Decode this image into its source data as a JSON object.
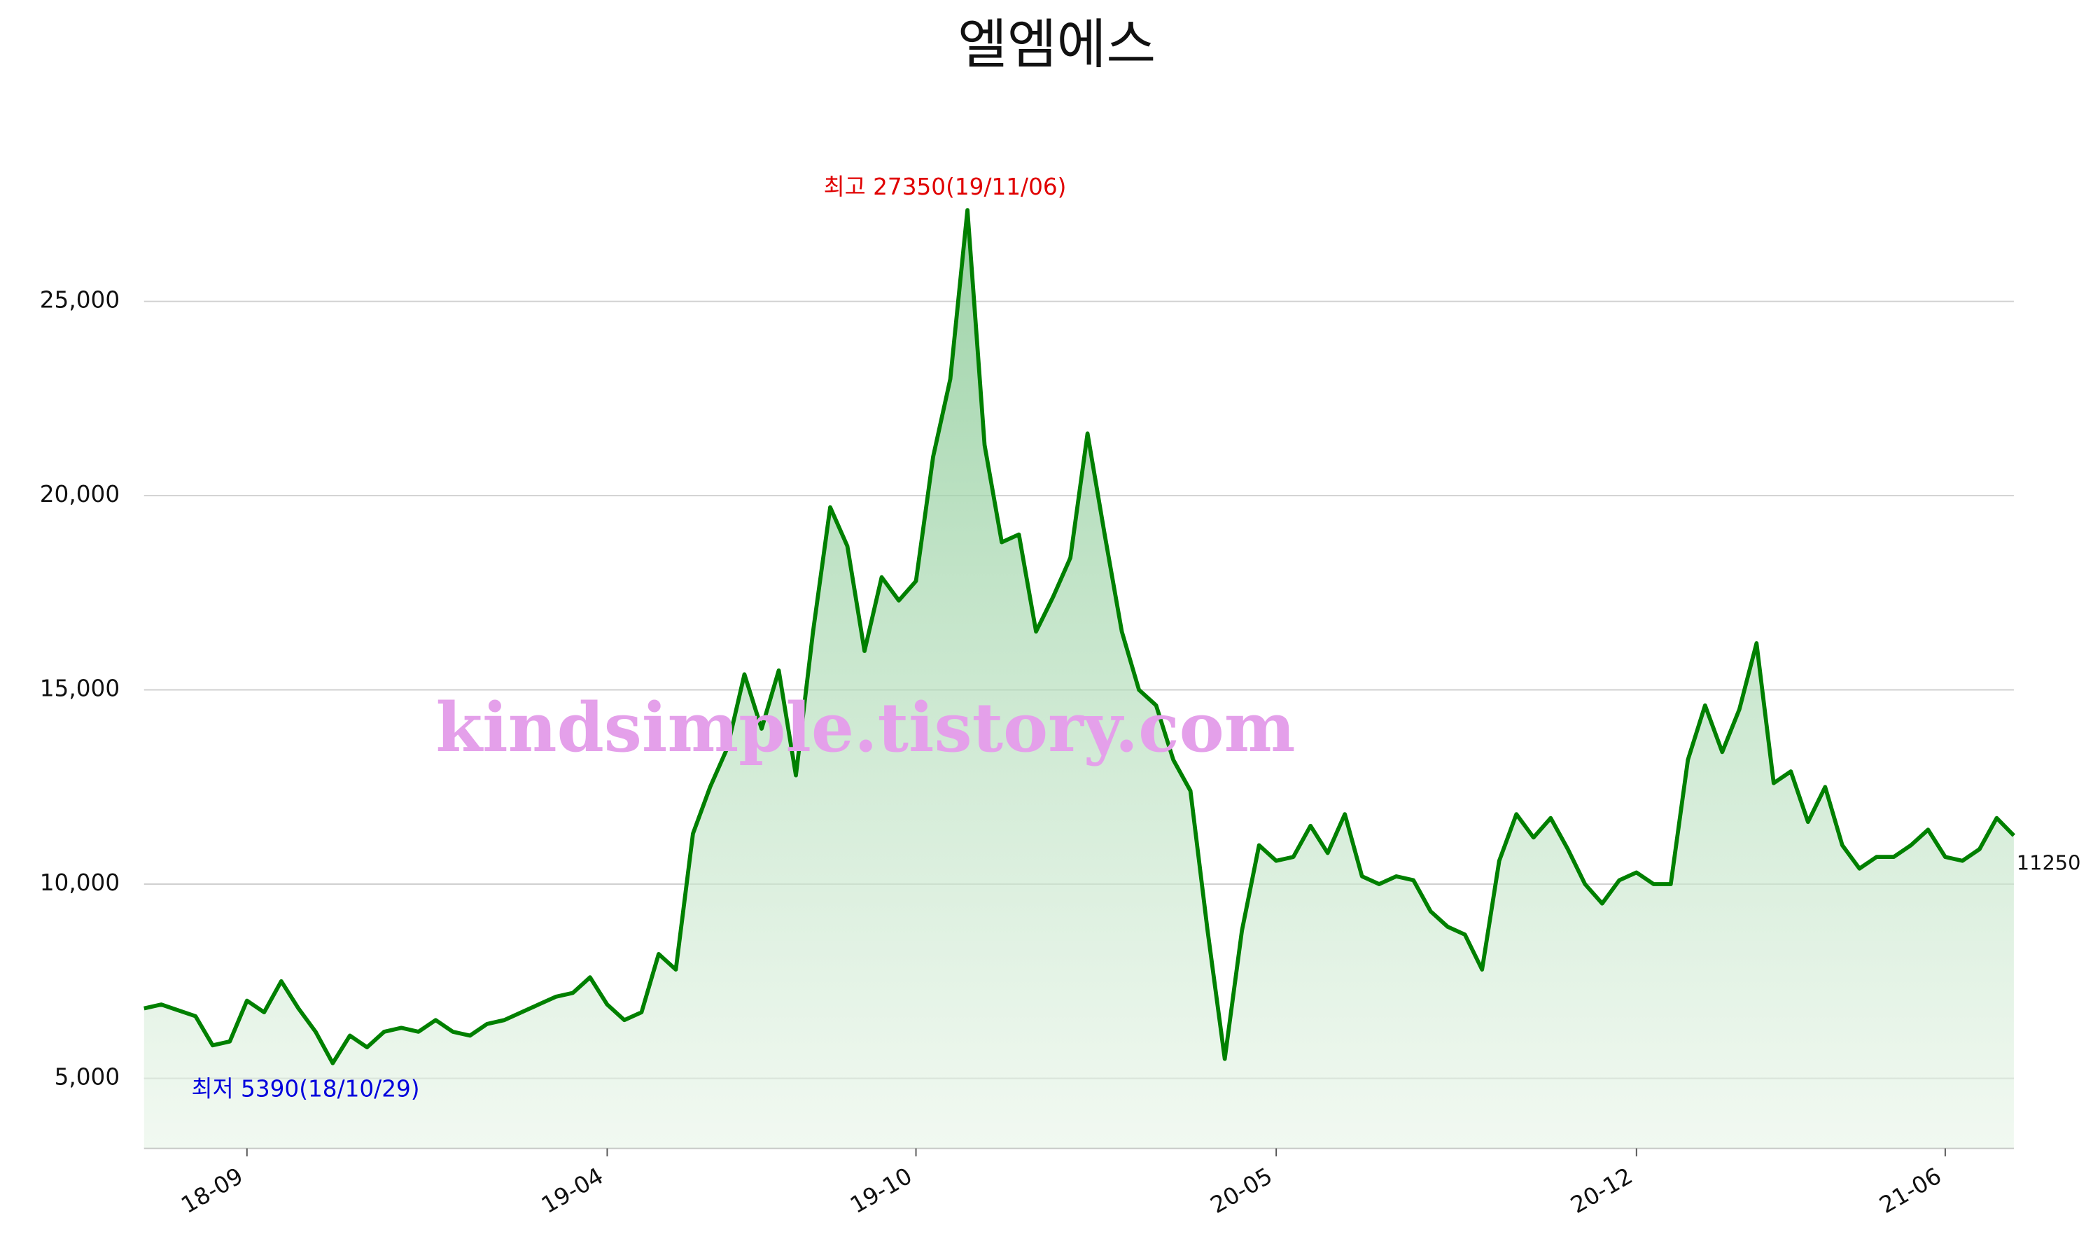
{
  "chart_data": {
    "type": "line",
    "title": "엘엠에스",
    "x": [
      "18-07",
      "18-07",
      "18-07",
      "18-08",
      "18-08",
      "18-08",
      "18-09",
      "18-09",
      "18-09",
      "18-10",
      "18-10",
      "18-10",
      "18-11",
      "18-11",
      "18-11",
      "18-12",
      "18-12",
      "18-12",
      "19-01",
      "19-01",
      "19-01",
      "19-02",
      "19-02",
      "19-02",
      "19-03",
      "19-03",
      "19-03",
      "19-04",
      "19-04",
      "19-04",
      "19-05",
      "19-05",
      "19-05",
      "19-06",
      "19-06",
      "19-06",
      "19-07",
      "19-07",
      "19-07",
      "19-08",
      "19-08",
      "19-08",
      "19-09",
      "19-09",
      "19-09",
      "19-10",
      "19-10",
      "19-10",
      "19-11",
      "19-11",
      "19-11",
      "19-12",
      "19-12",
      "19-12",
      "20-01",
      "20-01",
      "20-01",
      "20-02",
      "20-02",
      "20-02",
      "20-03",
      "20-03",
      "20-03",
      "20-04",
      "20-04",
      "20-04",
      "20-05",
      "20-05",
      "20-05",
      "20-06",
      "20-06",
      "20-06",
      "20-07",
      "20-07",
      "20-07",
      "20-08",
      "20-08",
      "20-08",
      "20-09",
      "20-09",
      "20-09",
      "20-10",
      "20-10",
      "20-10",
      "20-11",
      "20-11",
      "20-11",
      "20-12",
      "20-12",
      "20-12",
      "21-01",
      "21-01",
      "21-01",
      "21-02",
      "21-02",
      "21-02",
      "21-03",
      "21-03",
      "21-03",
      "21-04",
      "21-04",
      "21-04",
      "21-05",
      "21-05",
      "21-05",
      "21-06",
      "21-06",
      "21-06",
      "21-07",
      "21-07"
    ],
    "series": [
      {
        "name": "엘엠에스",
        "color": "#008000",
        "values": [
          6800,
          6900,
          6750,
          6600,
          5850,
          5950,
          7000,
          6700,
          7500,
          6800,
          6200,
          5390,
          6100,
          5800,
          6200,
          6300,
          6200,
          6500,
          6200,
          6100,
          6400,
          6500,
          6700,
          6900,
          7100,
          7200,
          7600,
          6900,
          6500,
          6700,
          8200,
          7800,
          11300,
          12500,
          13500,
          15400,
          14000,
          15500,
          12800,
          16500,
          19700,
          18700,
          16000,
          17900,
          17300,
          17800,
          21000,
          23000,
          27350,
          21300,
          18800,
          19000,
          16500,
          17400,
          18400,
          21600,
          19000,
          16500,
          15000,
          14600,
          13200,
          12400,
          8800,
          5500,
          8800,
          11000,
          10600,
          10700,
          11500,
          10800,
          11800,
          10200,
          10000,
          10200,
          10100,
          9300,
          8900,
          8700,
          7800,
          10600,
          11800,
          11200,
          11700,
          10900,
          10000,
          9500,
          10100,
          10300,
          10000,
          10000,
          13200,
          14600,
          13400,
          14500,
          16200,
          12600,
          12900,
          11600,
          12500,
          11000,
          10400,
          10700,
          10700,
          11000,
          11400,
          10700,
          10600,
          10900,
          11700,
          11250
        ]
      }
    ],
    "ylim": [
      3200,
      28600
    ],
    "yticks": [
      {
        "value": 5000,
        "label": "5,000"
      },
      {
        "value": 10000,
        "label": "10,000"
      },
      {
        "value": 15000,
        "label": "15,000"
      },
      {
        "value": 20000,
        "label": "20,000"
      },
      {
        "value": 25000,
        "label": "25,000"
      }
    ],
    "xticks": [
      "18-09",
      "19-04",
      "19-10",
      "20-05",
      "20-12",
      "21-06"
    ],
    "grid": true,
    "annotations": {
      "high": "최고 27350(19/11/06)",
      "low": "최저 5390(18/10/29)",
      "last": "11250"
    },
    "watermark": "kindsimple.tistory.com"
  }
}
